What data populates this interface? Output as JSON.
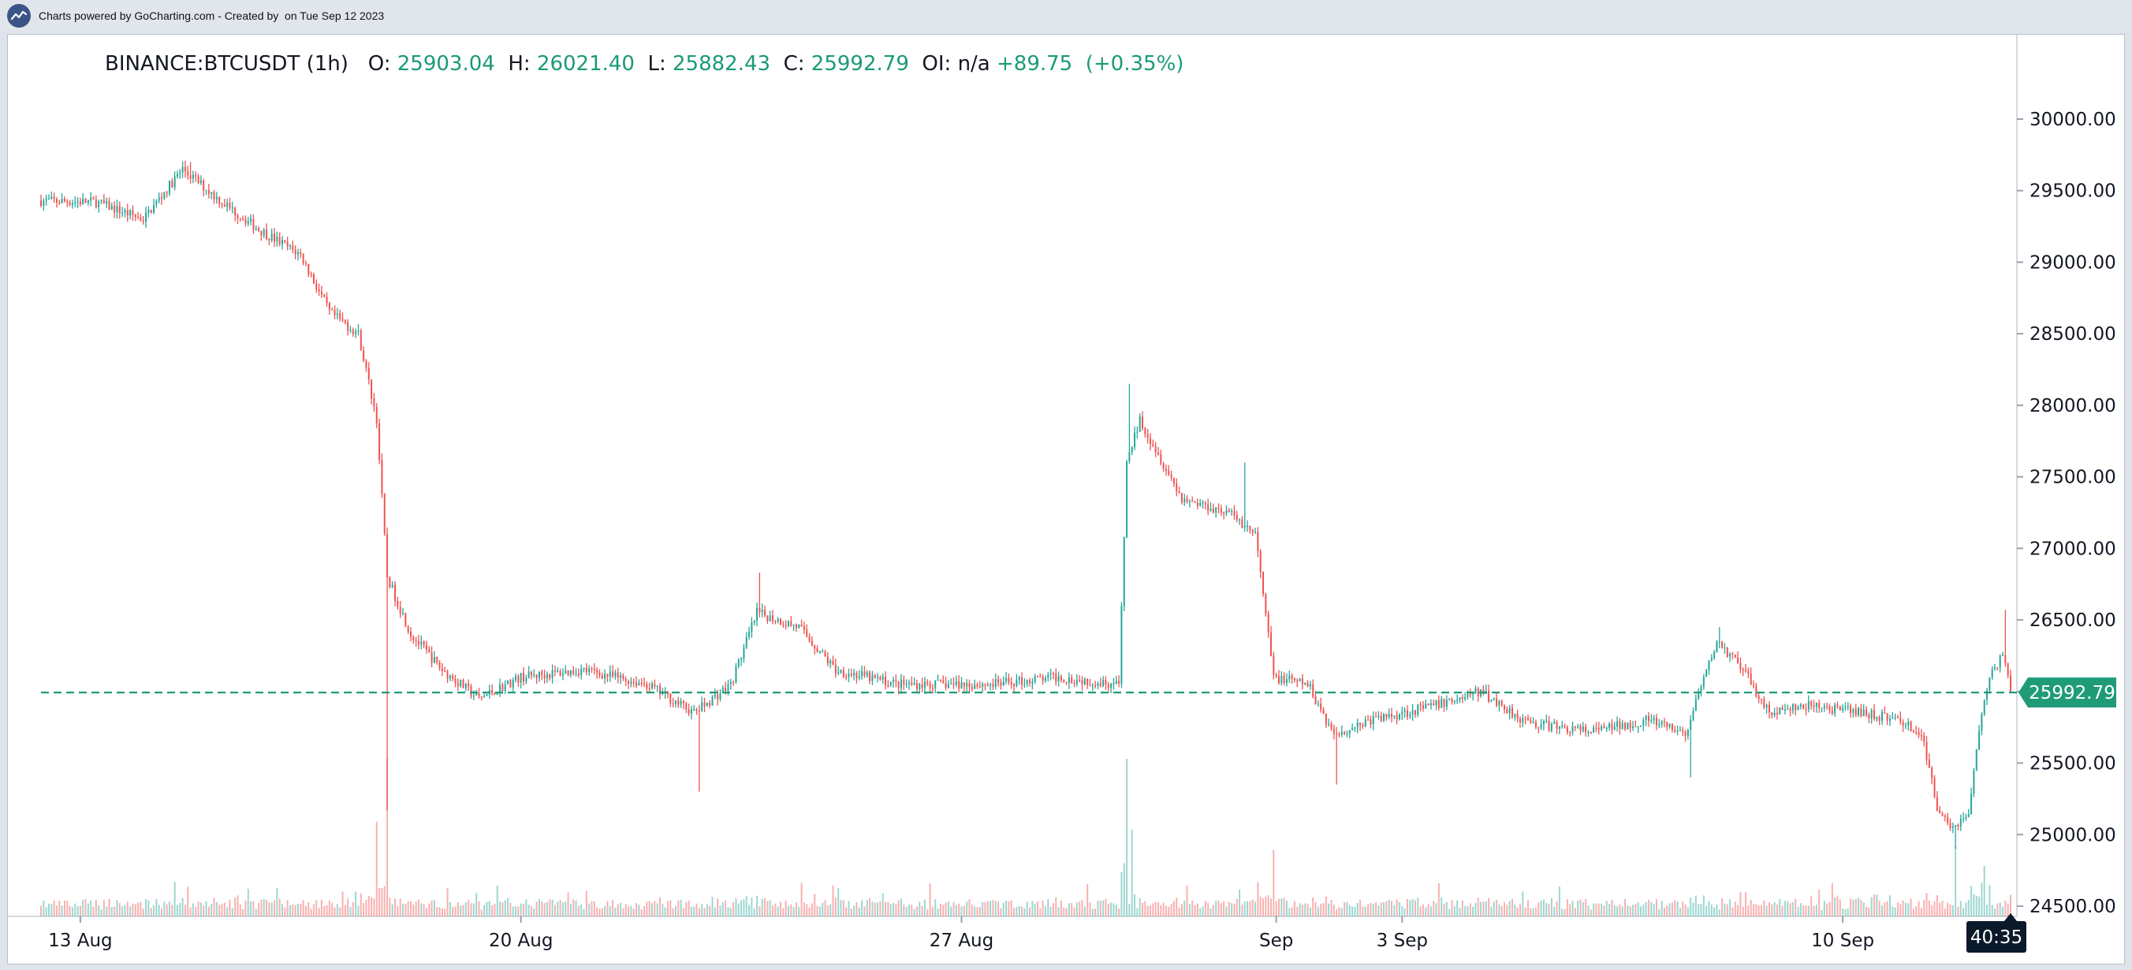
{
  "header": {
    "text": "Charts powered by GoCharting.com - Created by  on Tue Sep 12 2023",
    "logo_icon": "chart-trend-icon"
  },
  "legend": {
    "symbol": "BINANCE:BTCUSDT (1h)",
    "open_label": "O:",
    "open": "25903.04",
    "high_label": "H:",
    "high": "26021.40",
    "low_label": "L:",
    "low": "25882.43",
    "close_label": "C:",
    "close": "25992.79",
    "oi_label": "OI:",
    "oi": "n/a",
    "change": "+89.75",
    "change_pct": "(+0.35%)"
  },
  "colors": {
    "up": "#26a69a",
    "down": "#ef5350",
    "price_tag": "#1f9b78",
    "countdown": "#0b1a2a"
  },
  "chart_data": {
    "type": "candlestick",
    "interval": "1h",
    "ylim": [
      24400,
      30150
    ],
    "y_ticks": [
      {
        "value": 24500,
        "label": "24500.00"
      },
      {
        "value": 25000,
        "label": "25000.00"
      },
      {
        "value": 25500,
        "label": "25500.00"
      },
      {
        "value": 26000,
        "label": "26000.00"
      },
      {
        "value": 26500,
        "label": "26500.00"
      },
      {
        "value": 27000,
        "label": "27000.00"
      },
      {
        "value": 27500,
        "label": "27500.00"
      },
      {
        "value": 28000,
        "label": "28000.00"
      },
      {
        "value": 28500,
        "label": "28500.00"
      },
      {
        "value": 29000,
        "label": "29000.00"
      },
      {
        "value": 29500,
        "label": "29500.00"
      },
      {
        "value": 30000,
        "label": "30000.00"
      }
    ],
    "x_ticks": [
      {
        "date": "2023-08-13",
        "label": "13 Aug"
      },
      {
        "date": "2023-08-20",
        "label": "20 Aug"
      },
      {
        "date": "2023-08-27",
        "label": "27 Aug"
      },
      {
        "date": "2023-09-01",
        "label": "Sep"
      },
      {
        "date": "2023-09-03",
        "label": "3 Sep"
      },
      {
        "date": "2023-09-10",
        "label": "10 Sep"
      }
    ],
    "x_range": [
      "2023-08-12 09:00",
      "2023-09-12 16:00"
    ],
    "last_price": 25992.79,
    "last_price_label": "25992.79",
    "countdown_label": "40:35",
    "price_path": [
      {
        "t": "2023-08-12 09:00",
        "p": 29430
      },
      {
        "t": "2023-08-13 06:00",
        "p": 29420
      },
      {
        "t": "2023-08-14 00:00",
        "p": 29300
      },
      {
        "t": "2023-08-14 15:00",
        "p": 29650
      },
      {
        "t": "2023-08-15 06:00",
        "p": 29420
      },
      {
        "t": "2023-08-15 20:00",
        "p": 29230
      },
      {
        "t": "2023-08-16 12:00",
        "p": 29050
      },
      {
        "t": "2023-08-16 23:00",
        "p": 28650
      },
      {
        "t": "2023-08-17 10:00",
        "p": 28500
      },
      {
        "t": "2023-08-17 17:00",
        "p": 27900
      },
      {
        "t": "2023-08-17 21:00",
        "p": 26800
      },
      {
        "t": "2023-08-18 06:00",
        "p": 26400
      },
      {
        "t": "2023-08-18 18:00",
        "p": 26150
      },
      {
        "t": "2023-08-19 08:00",
        "p": 25950
      },
      {
        "t": "2023-08-20 00:00",
        "p": 26100
      },
      {
        "t": "2023-08-21 00:00",
        "p": 26150
      },
      {
        "t": "2023-08-22 00:00",
        "p": 26050
      },
      {
        "t": "2023-08-22 18:00",
        "p": 25850
      },
      {
        "t": "2023-08-23 08:00",
        "p": 26050
      },
      {
        "t": "2023-08-23 18:00",
        "p": 26550
      },
      {
        "t": "2023-08-24 10:00",
        "p": 26450
      },
      {
        "t": "2023-08-25 00:00",
        "p": 26150
      },
      {
        "t": "2023-08-26 00:00",
        "p": 26050
      },
      {
        "t": "2023-08-27 12:00",
        "p": 26050
      },
      {
        "t": "2023-08-28 12:00",
        "p": 26100
      },
      {
        "t": "2023-08-29 12:00",
        "p": 26050
      },
      {
        "t": "2023-08-29 15:00",
        "p": 27600
      },
      {
        "t": "2023-08-29 20:00",
        "p": 27900
      },
      {
        "t": "2023-08-30 12:00",
        "p": 27350
      },
      {
        "t": "2023-08-31 06:00",
        "p": 27250
      },
      {
        "t": "2023-08-31 16:00",
        "p": 27100
      },
      {
        "t": "2023-08-31 23:00",
        "p": 26100
      },
      {
        "t": "2023-09-01 12:00",
        "p": 26050
      },
      {
        "t": "2023-09-01 22:00",
        "p": 25700
      },
      {
        "t": "2023-09-02 12:00",
        "p": 25800
      },
      {
        "t": "2023-09-03 12:00",
        "p": 25900
      },
      {
        "t": "2023-09-04 06:00",
        "p": 26000
      },
      {
        "t": "2023-09-05 00:00",
        "p": 25780
      },
      {
        "t": "2023-09-06 00:00",
        "p": 25720
      },
      {
        "t": "2023-09-06 22:00",
        "p": 25800
      },
      {
        "t": "2023-09-07 12:00",
        "p": 25700
      },
      {
        "t": "2023-09-08 00:00",
        "p": 26350
      },
      {
        "t": "2023-09-08 10:00",
        "p": 26150
      },
      {
        "t": "2023-09-08 20:00",
        "p": 25850
      },
      {
        "t": "2023-09-09 12:00",
        "p": 25900
      },
      {
        "t": "2023-09-10 08:00",
        "p": 25850
      },
      {
        "t": "2023-09-10 22:00",
        "p": 25800
      },
      {
        "t": "2023-09-11 06:00",
        "p": 25700
      },
      {
        "t": "2023-09-11 12:00",
        "p": 25200
      },
      {
        "t": "2023-09-11 18:00",
        "p": 25050
      },
      {
        "t": "2023-09-12 00:00",
        "p": 25150
      },
      {
        "t": "2023-09-12 04:00",
        "p": 25750
      },
      {
        "t": "2023-09-12 09:00",
        "p": 26150
      },
      {
        "t": "2023-09-12 13:00",
        "p": 26250
      },
      {
        "t": "2023-09-12 16:00",
        "p": 25993
      }
    ],
    "notable_wicks": [
      {
        "t": "2023-08-14 18:00",
        "high": 29700
      },
      {
        "t": "2023-08-17 21:00",
        "low": 25170
      },
      {
        "t": "2023-08-22 20:00",
        "low": 25300
      },
      {
        "t": "2023-08-23 19:00",
        "high": 26830
      },
      {
        "t": "2023-08-29 16:00",
        "high": 28150
      },
      {
        "t": "2023-08-31 12:00",
        "high": 27600
      },
      {
        "t": "2023-09-01 23:00",
        "low": 25350
      },
      {
        "t": "2023-09-07 14:00",
        "low": 25400
      },
      {
        "t": "2023-09-08 01:00",
        "high": 26450
      },
      {
        "t": "2023-09-11 19:00",
        "low": 24900
      },
      {
        "t": "2023-09-12 14:00",
        "high": 26570
      }
    ],
    "volume_spikes": [
      {
        "t": "2023-08-17 21:00",
        "v": 1.0
      },
      {
        "t": "2023-08-17 17:00",
        "v": 0.6
      },
      {
        "t": "2023-08-29 15:00",
        "v": 1.0
      },
      {
        "t": "2023-08-29 17:00",
        "v": 0.55
      },
      {
        "t": "2023-08-31 23:00",
        "v": 0.42
      },
      {
        "t": "2023-09-11 19:00",
        "v": 0.45
      },
      {
        "t": "2023-09-12 06:00",
        "v": 0.32
      }
    ]
  }
}
